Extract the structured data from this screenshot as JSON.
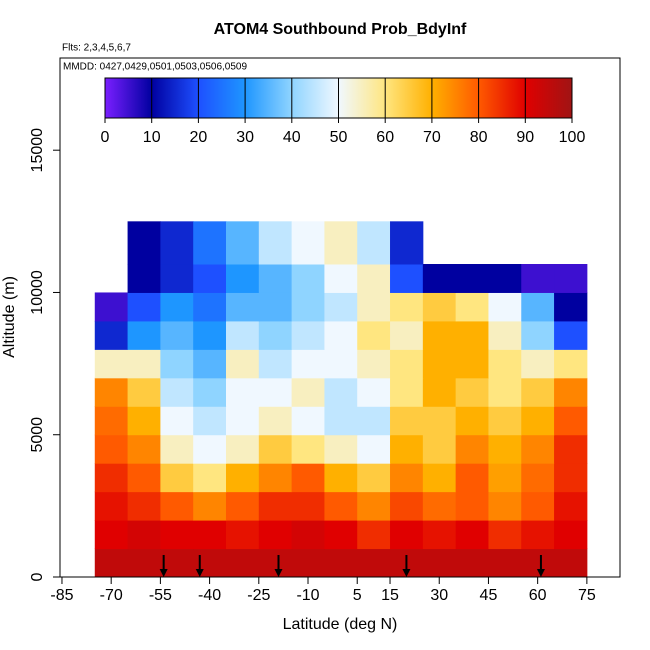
{
  "chart_data": {
    "type": "heatmap",
    "title": "ATOM4 Southbound Prob_BdyInf",
    "subtitle": "Flts: 2,3,4,5,6,7",
    "note": "MMDD: 0427,0429,0501,0503,0506,0509",
    "x_label": "Latitude (deg N)",
    "y_label": "Altitude (m)",
    "xlim": [
      -85.6,
      85.1
    ],
    "ylim": [
      0,
      18240
    ],
    "xticks": [
      -85,
      -70,
      -55,
      -40,
      -25,
      -10,
      5,
      15,
      30,
      45,
      60,
      75
    ],
    "yticks": [
      0,
      5000,
      10000,
      15000
    ],
    "x_bins": [
      -75,
      -65,
      -55,
      -45,
      -35,
      -25,
      -15,
      -5,
      5,
      15,
      25,
      35,
      45,
      55,
      65,
      75
    ],
    "y_bins": [
      0,
      1000,
      2000,
      3000,
      4000,
      5000,
      6000,
      7000,
      8000,
      9000,
      10000,
      11000,
      12500
    ],
    "values": [
      [
        95,
        95,
        95,
        95,
        95,
        95,
        95,
        95,
        95,
        95,
        95,
        95,
        95,
        95,
        95
      ],
      [
        90,
        92,
        90,
        90,
        88,
        90,
        92,
        90,
        85,
        90,
        88,
        90,
        85,
        88,
        90
      ],
      [
        88,
        85,
        80,
        75,
        80,
        85,
        85,
        80,
        75,
        82,
        78,
        80,
        75,
        80,
        88
      ],
      [
        85,
        80,
        65,
        60,
        70,
        75,
        80,
        70,
        65,
        75,
        70,
        80,
        72,
        78,
        85
      ],
      [
        80,
        75,
        55,
        50,
        55,
        65,
        60,
        55,
        50,
        70,
        65,
        75,
        70,
        75,
        85
      ],
      [
        78,
        70,
        50,
        45,
        50,
        55,
        50,
        45,
        45,
        65,
        65,
        70,
        65,
        70,
        80
      ],
      [
        75,
        65,
        45,
        40,
        50,
        50,
        55,
        45,
        50,
        60,
        70,
        65,
        60,
        65,
        75
      ],
      [
        55,
        55,
        40,
        35,
        55,
        45,
        50,
        50,
        55,
        60,
        70,
        70,
        60,
        55,
        60
      ],
      [
        15,
        30,
        35,
        30,
        45,
        40,
        45,
        50,
        60,
        55,
        70,
        70,
        55,
        40,
        20
      ],
      [
        5,
        20,
        30,
        25,
        35,
        35,
        40,
        45,
        55,
        60,
        65,
        60,
        50,
        35,
        10
      ],
      [
        null,
        10,
        15,
        20,
        30,
        35,
        40,
        50,
        55,
        20,
        10,
        10,
        10,
        5,
        5
      ],
      [
        null,
        10,
        15,
        25,
        35,
        45,
        50,
        55,
        45,
        15,
        null,
        null,
        null,
        null,
        null
      ]
    ],
    "arrows": [
      -54,
      -43,
      -19,
      20,
      61
    ],
    "colorbar_ticks": [
      0,
      10,
      20,
      30,
      40,
      50,
      60,
      70,
      80,
      90,
      100
    ],
    "colorscale": [
      "#7a1fff",
      "#0000a0",
      "#1e50ff",
      "#1e96ff",
      "#8fd4ff",
      "#f0f8ff",
      "#ffe680",
      "#ffb000",
      "#ff5a00",
      "#e00000",
      "#a01414"
    ]
  }
}
